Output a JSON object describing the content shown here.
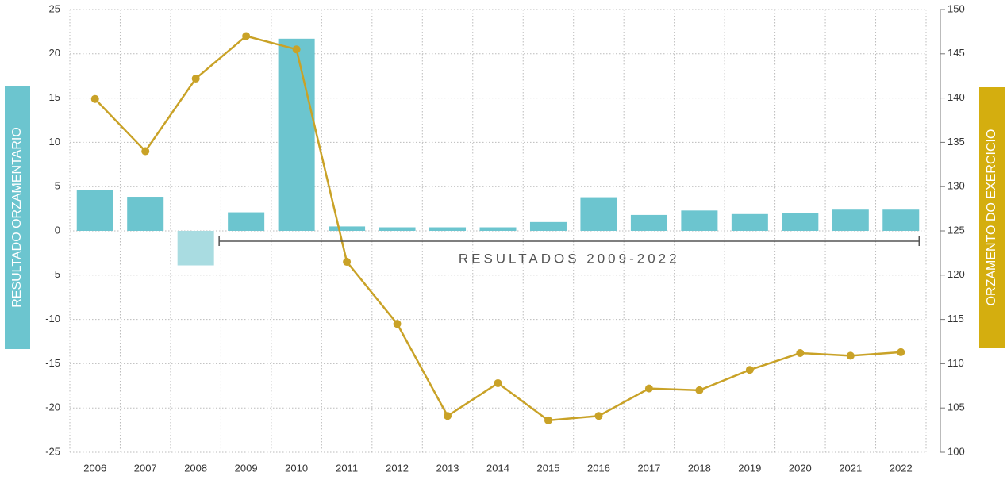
{
  "chart_data": {
    "type": "combo",
    "categories": [
      "2006",
      "2007",
      "2008",
      "2009",
      "2010",
      "2011",
      "2012",
      "2013",
      "2014",
      "2015",
      "2016",
      "2017",
      "2018",
      "2019",
      "2020",
      "2021",
      "2022"
    ],
    "series": [
      {
        "type": "bar",
        "axis": "y",
        "color": "#6cc5cf",
        "colors": [
          "#6cc5cf",
          "#6cc5cf",
          "#a9dce1",
          "#6cc5cf",
          "#6cc5cf",
          "#6cc5cf",
          "#6cc5cf",
          "#6cc5cf",
          "#6cc5cf",
          "#6cc5cf",
          "#6cc5cf",
          "#6cc5cf",
          "#6cc5cf",
          "#6cc5cf",
          "#6cc5cf",
          "#6cc5cf",
          "#6cc5cf"
        ],
        "values": [
          4.6,
          3.85,
          -3.9,
          2.1,
          21.7,
          0.5,
          0.4,
          0.4,
          0.4,
          1.0,
          3.8,
          1.8,
          2.3,
          1.9,
          2.0,
          2.4,
          2.4
        ]
      },
      {
        "type": "line",
        "axis": "y2",
        "color": "#c9a227",
        "values": [
          139.9,
          134.0,
          142.2,
          147.0,
          145.5,
          121.5,
          114.5,
          104.1,
          107.8,
          103.6,
          104.1,
          107.2,
          107.0,
          109.3,
          111.2,
          110.9,
          111.3
        ]
      }
    ],
    "ylabel": "RESULTADO ORZAMENTARIO",
    "y2label": "ORZAMENTO DO EXERCICIO",
    "annotation": "RESULTADOS 2009-2022",
    "ylim": [
      -25,
      25
    ],
    "yticks": [
      -25,
      -20,
      -15,
      -10,
      -5,
      0,
      5,
      10,
      15,
      20,
      25
    ],
    "y2lim": [
      100,
      150
    ],
    "y2ticks": [
      100,
      105,
      110,
      115,
      120,
      125,
      130,
      135,
      140,
      145,
      150
    ],
    "grid": true
  }
}
